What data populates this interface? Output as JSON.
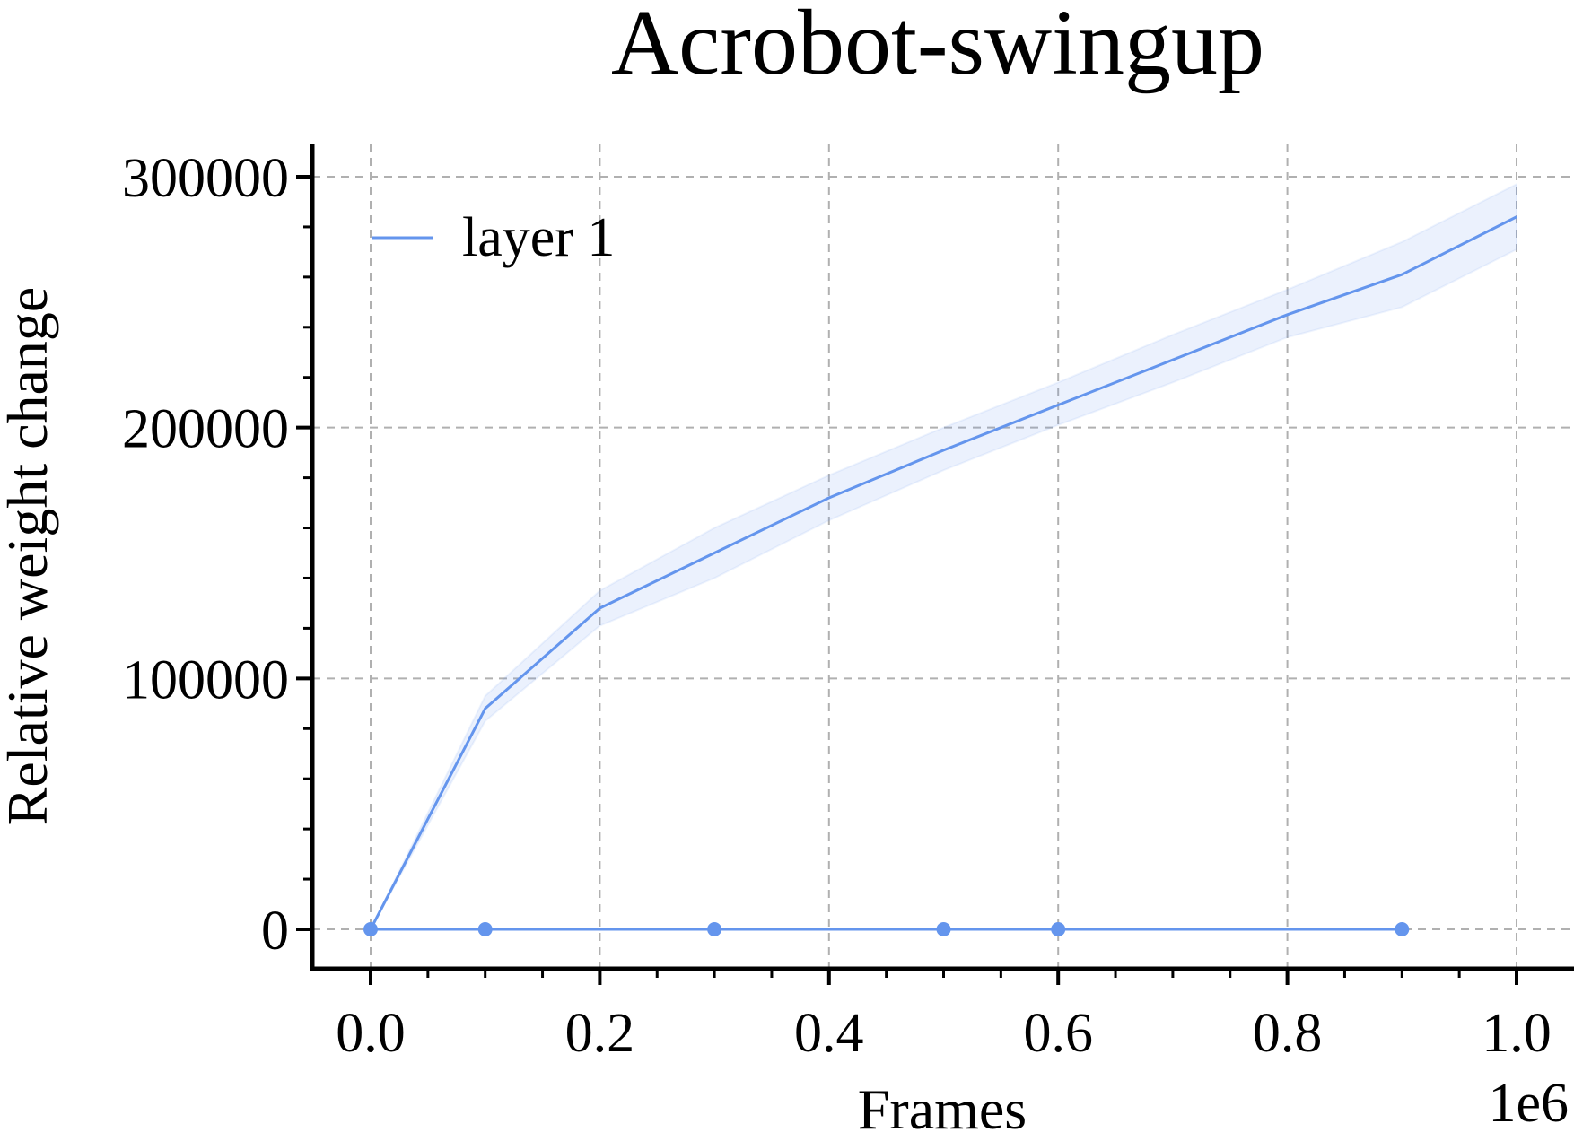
{
  "chart_data": {
    "type": "line",
    "title": "Acrobot-swingup",
    "xlabel": "Frames",
    "ylabel": "Relative weight change",
    "x_offset_label": "1e6",
    "xlim": [
      -0.05,
      1.05
    ],
    "ylim": [
      -16000,
      312000
    ],
    "x_ticks": [
      "0.0",
      "0.2",
      "0.4",
      "0.6",
      "0.8",
      "1.0"
    ],
    "x_tick_values": [
      0.0,
      0.2,
      0.4,
      0.6,
      0.8,
      1.0
    ],
    "y_ticks": [
      "0",
      "100000",
      "200000",
      "300000"
    ],
    "y_tick_values": [
      0,
      100000,
      200000,
      300000
    ],
    "grid": true,
    "legend_position": "top-left",
    "series": [
      {
        "name": "layer 1",
        "color": "#6495ED",
        "x": [
          0.0,
          0.1,
          0.2,
          0.3,
          0.4,
          0.5,
          0.6,
          0.7,
          0.8,
          0.9,
          1.0
        ],
        "y": [
          0,
          88000,
          128000,
          150000,
          172000,
          191000,
          209000,
          227000,
          245000,
          261000,
          284000
        ],
        "band_lower": [
          0,
          83000,
          121000,
          140000,
          163000,
          183000,
          201000,
          218000,
          236000,
          248000,
          271000
        ],
        "band_upper": [
          0,
          93000,
          135000,
          160000,
          181000,
          200000,
          218000,
          237000,
          255000,
          274000,
          297000
        ]
      }
    ],
    "baseline": {
      "color": "#6495ED",
      "x": [
        0.0,
        0.1,
        0.3,
        0.5,
        0.6,
        0.9
      ],
      "y": [
        0,
        0,
        0,
        0,
        0,
        0
      ]
    }
  }
}
